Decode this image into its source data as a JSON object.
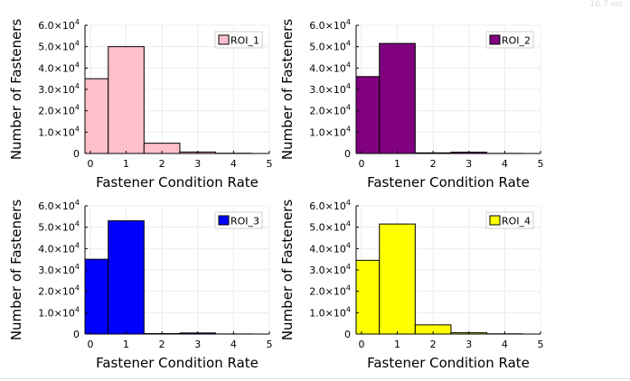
{
  "timing_text": "16.7 ms",
  "chart_data": [
    {
      "type": "bar",
      "title": "",
      "xlabel": "Fastener Condition Rate",
      "ylabel": "Number of Fasteners",
      "x_ticks": [
        0,
        1,
        2,
        3,
        4,
        5
      ],
      "y_ticks": [
        0,
        10000,
        20000,
        30000,
        40000,
        50000,
        60000
      ],
      "xlim": [
        -0.15,
        5
      ],
      "ylim": [
        0,
        60000
      ],
      "grid": true,
      "legend_position": "top-right",
      "bins": [
        [
          -0.5,
          0.5
        ],
        [
          0.5,
          1.5
        ],
        [
          1.5,
          2.5
        ],
        [
          2.5,
          3.5
        ],
        [
          3.5,
          4.5
        ],
        [
          4.5,
          5.5
        ]
      ],
      "series": [
        {
          "name": "ROI_1",
          "color": "#ffc0cb",
          "values": [
            35000,
            50000,
            4800,
            700,
            100,
            0
          ]
        }
      ]
    },
    {
      "type": "bar",
      "title": "",
      "xlabel": "Fastener Condition Rate",
      "ylabel": "Number of Fasteners",
      "x_ticks": [
        0,
        1,
        2,
        3,
        4,
        5
      ],
      "y_ticks": [
        0,
        10000,
        20000,
        30000,
        40000,
        50000,
        60000
      ],
      "xlim": [
        -0.15,
        5
      ],
      "ylim": [
        0,
        60000
      ],
      "grid": true,
      "legend_position": "top-right",
      "bins": [
        [
          -0.5,
          0.5
        ],
        [
          0.5,
          1.5
        ],
        [
          1.5,
          2.5
        ],
        [
          2.5,
          3.5
        ],
        [
          3.5,
          4.5
        ],
        [
          4.5,
          5.5
        ]
      ],
      "series": [
        {
          "name": "ROI_2",
          "color": "#800080",
          "values": [
            36000,
            51500,
            300,
            600,
            50,
            0
          ]
        }
      ]
    },
    {
      "type": "bar",
      "title": "",
      "xlabel": "Fastener Condition Rate",
      "ylabel": "Number of Fasteners",
      "x_ticks": [
        0,
        1,
        2,
        3,
        4,
        5
      ],
      "y_ticks": [
        0,
        10000,
        20000,
        30000,
        40000,
        50000,
        60000
      ],
      "xlim": [
        -0.15,
        5
      ],
      "ylim": [
        0,
        60000
      ],
      "grid": true,
      "legend_position": "top-right",
      "bins": [
        [
          -0.5,
          0.5
        ],
        [
          0.5,
          1.5
        ],
        [
          1.5,
          2.5
        ],
        [
          2.5,
          3.5
        ],
        [
          3.5,
          4.5
        ],
        [
          4.5,
          5.5
        ]
      ],
      "series": [
        {
          "name": "ROI_3",
          "color": "#0000ff",
          "values": [
            35000,
            53000,
            200,
            500,
            50,
            0
          ]
        }
      ]
    },
    {
      "type": "bar",
      "title": "",
      "xlabel": "Fastener Condition Rate",
      "ylabel": "Number of Fasteners",
      "x_ticks": [
        0,
        1,
        2,
        3,
        4,
        5
      ],
      "y_ticks": [
        0,
        10000,
        20000,
        30000,
        40000,
        50000,
        60000
      ],
      "xlim": [
        -0.15,
        5
      ],
      "ylim": [
        0,
        60000
      ],
      "grid": true,
      "legend_position": "top-right",
      "bins": [
        [
          -0.5,
          0.5
        ],
        [
          0.5,
          1.5
        ],
        [
          1.5,
          2.5
        ],
        [
          2.5,
          3.5
        ],
        [
          3.5,
          4.5
        ],
        [
          4.5,
          5.5
        ]
      ],
      "series": [
        {
          "name": "ROI_4",
          "color": "#ffff00",
          "values": [
            34500,
            51500,
            4300,
            600,
            100,
            0
          ]
        }
      ]
    }
  ]
}
